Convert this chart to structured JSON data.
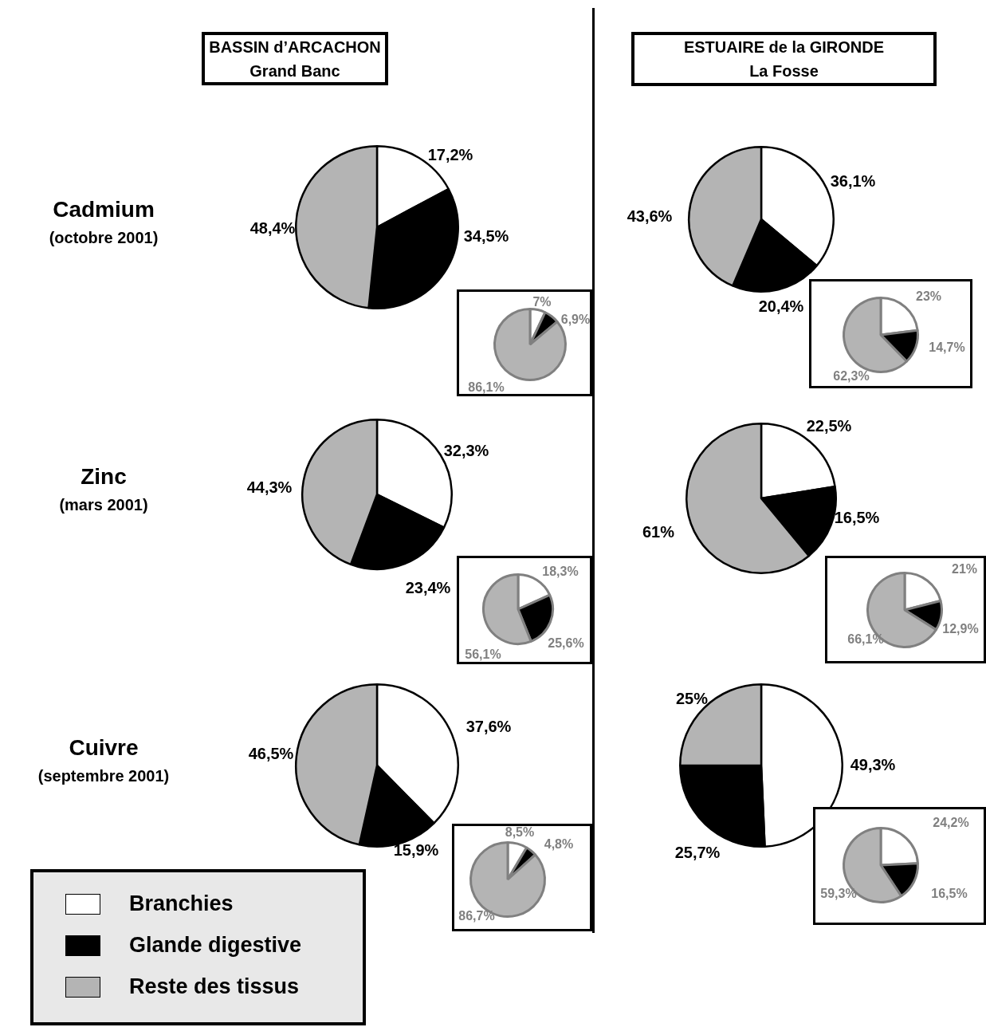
{
  "chart_data": [
    {
      "type": "pie",
      "categories": [
        "Branchies",
        "Glande digestive",
        "Reste des tissus"
      ],
      "colors": [
        "#ffffff",
        "#000000",
        "#b4b4b4"
      ],
      "values": [
        17.2,
        34.5,
        48.4
      ],
      "value_labels": [
        "17,2%",
        "34,5%",
        "48,4%"
      ],
      "legend": "bottom left",
      "annotations": [
        "BASSIN d’ARCACHON\nGrand Banc",
        "Cadmium",
        "(octobre 2001)"
      ]
    },
    {
      "type": "pie",
      "categories": [
        null,
        null,
        null
      ],
      "colors": [
        "#ffffff",
        "#000000",
        "#b4b4b4"
      ],
      "values": [
        36.1,
        20.4,
        43.6
      ],
      "value_labels": [
        "36,1%",
        "20,4%",
        "43,6%"
      ],
      "annotations": [
        "ESTUAIRE de la GIRONDE\nLa Fosse"
      ]
    },
    {
      "type": "pie",
      "categories": [
        null,
        null,
        null
      ],
      "colors": [
        "#ffffff",
        "#000000",
        "#b4b4b4"
      ],
      "values": [
        7,
        6.9,
        86.1
      ],
      "value_labels": [
        "7%",
        "6,9%",
        "86,1%"
      ]
    },
    {
      "type": "pie",
      "categories": [
        null,
        null,
        null
      ],
      "colors": [
        "#ffffff",
        "#000000",
        "#b4b4b4"
      ],
      "values": [
        23,
        14.7,
        62.3
      ],
      "value_labels": [
        "23%",
        "14,7%",
        "62,3%"
      ]
    },
    {
      "type": "pie",
      "categories": [
        null,
        null,
        null
      ],
      "colors": [
        "#ffffff",
        "#000000",
        "#b4b4b4"
      ],
      "values": [
        32.3,
        23.4,
        44.3
      ],
      "value_labels": [
        "32,3%",
        "23,4%",
        "44,3%"
      ],
      "annotations": [
        "Zinc",
        "(mars 2001)"
      ]
    },
    {
      "type": "pie",
      "categories": [
        null,
        null,
        null
      ],
      "colors": [
        "#ffffff",
        "#000000",
        "#b4b4b4"
      ],
      "values": [
        22.5,
        16.5,
        61
      ],
      "value_labels": [
        "22,5%",
        "16,5%",
        "61%"
      ]
    },
    {
      "type": "pie",
      "categories": [
        null,
        null,
        null
      ],
      "colors": [
        "#ffffff",
        "#000000",
        "#b4b4b4"
      ],
      "values": [
        18.3,
        25.6,
        56.1
      ],
      "value_labels": [
        "18,3%",
        "25,6%",
        "56,1%"
      ]
    },
    {
      "type": "pie",
      "categories": [
        null,
        null,
        null
      ],
      "colors": [
        "#ffffff",
        "#000000",
        "#b4b4b4"
      ],
      "values": [
        21,
        12.9,
        66.1
      ],
      "value_labels": [
        "21%",
        "12,9%",
        "66,1%"
      ]
    },
    {
      "type": "pie",
      "categories": [
        null,
        null,
        null
      ],
      "colors": [
        "#ffffff",
        "#000000",
        "#b4b4b4"
      ],
      "values": [
        37.6,
        15.9,
        46.5
      ],
      "value_labels": [
        "37,6%",
        "15,9%",
        "46,5%"
      ],
      "annotations": [
        "Cuivre",
        "(septembre 2001)"
      ]
    },
    {
      "type": "pie",
      "categories": [
        null,
        null,
        null
      ],
      "colors": [
        "#ffffff",
        "#000000",
        "#b4b4b4"
      ],
      "values": [
        49.3,
        25.7,
        25
      ],
      "value_labels": [
        "49,3%",
        "25,7%",
        "25%"
      ]
    },
    {
      "type": "pie",
      "categories": [
        null,
        null,
        null
      ],
      "colors": [
        "#ffffff",
        "#000000",
        "#b4b4b4"
      ],
      "values": [
        8.5,
        4.8,
        86.7
      ],
      "value_labels": [
        "8,5%",
        "4,8%",
        "86,7%"
      ]
    },
    {
      "type": "pie",
      "categories": [
        null,
        null,
        null
      ],
      "colors": [
        "#ffffff",
        "#000000",
        "#b4b4b4"
      ],
      "values": [
        24.2,
        16.5,
        59.3
      ],
      "value_labels": [
        "24,2%",
        "16,5%",
        "59,3%"
      ]
    }
  ]
}
